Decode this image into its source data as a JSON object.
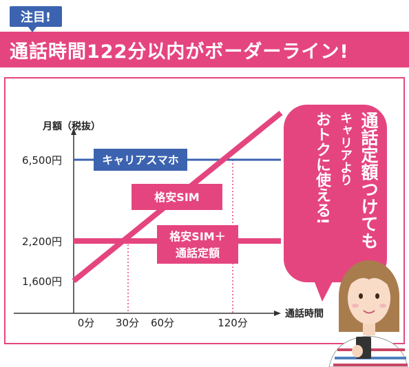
{
  "header": {
    "badge": "注目!",
    "headline": "通話時間122分以内がボーダーライン!"
  },
  "chart_data": {
    "type": "line",
    "ylabel": "月額（税抜）",
    "xlabel": "通話時間",
    "y_ticks": [
      "6,500円",
      "2,200円",
      "1,600円"
    ],
    "x_ticks": [
      "0分",
      "30分",
      "60分",
      "120分"
    ],
    "series": [
      {
        "name": "キャリアスマホ",
        "color": "#3c63b0",
        "x": [
          0,
          175
        ],
        "y": [
          6500,
          6500
        ]
      },
      {
        "name": "格安SIM",
        "color": "#e5457f",
        "x": [
          0,
          175
        ],
        "y": [
          1600,
          7200
        ]
      },
      {
        "name": "格安SIM+通話定額",
        "color": "#e5457f",
        "x": [
          0,
          175
        ],
        "y": [
          2200,
          2200
        ]
      }
    ],
    "markers": [
      {
        "x": 30,
        "label": "30分"
      },
      {
        "x": 120,
        "label": "120分"
      }
    ],
    "annotation": "通話定額つけてもキャリアよりおトクに使える!"
  },
  "bubble": {
    "line1": "通話定額つけても",
    "line2": "キャリアより",
    "line3": "おトクに使える!"
  },
  "colors": {
    "pink": "#e5457f",
    "blue": "#3c63b0",
    "border": "#e5457f"
  }
}
